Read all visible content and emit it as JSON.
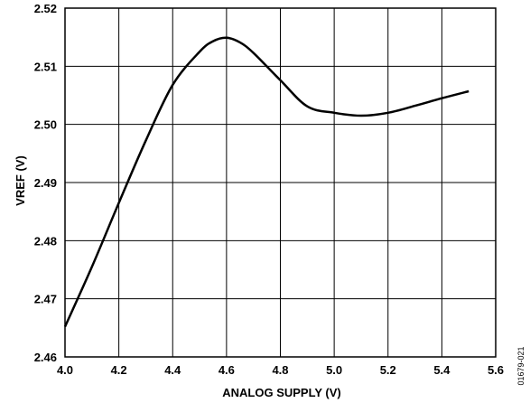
{
  "chart_data": {
    "type": "line",
    "title": "",
    "xlabel": "ANALOG SUPPLY (V)",
    "ylabel": "VREF (V)",
    "xlim": [
      4.0,
      5.6
    ],
    "ylim": [
      2.46,
      2.52
    ],
    "x_ticks": [
      "4.0",
      "4.2",
      "4.4",
      "4.6",
      "4.8",
      "5.0",
      "5.2",
      "5.4",
      "5.6"
    ],
    "y_ticks": [
      "2.46",
      "2.47",
      "2.48",
      "2.49",
      "2.50",
      "2.51",
      "2.52"
    ],
    "grid": true,
    "series": [
      {
        "color": "#000000",
        "x": [
          4.0,
          4.1,
          4.2,
          4.3,
          4.4,
          4.5,
          4.55,
          4.6,
          4.65,
          4.7,
          4.8,
          4.9,
          5.0,
          5.1,
          5.2,
          5.3,
          5.4,
          5.5
        ],
        "y": [
          2.4652,
          2.4755,
          2.4865,
          2.4972,
          2.5068,
          2.5125,
          2.5143,
          2.5149,
          2.5141,
          2.5123,
          2.5076,
          2.5031,
          2.502,
          2.5015,
          2.502,
          2.5032,
          2.5045,
          2.5057
        ]
      }
    ]
  },
  "figure_id": "01679-021"
}
